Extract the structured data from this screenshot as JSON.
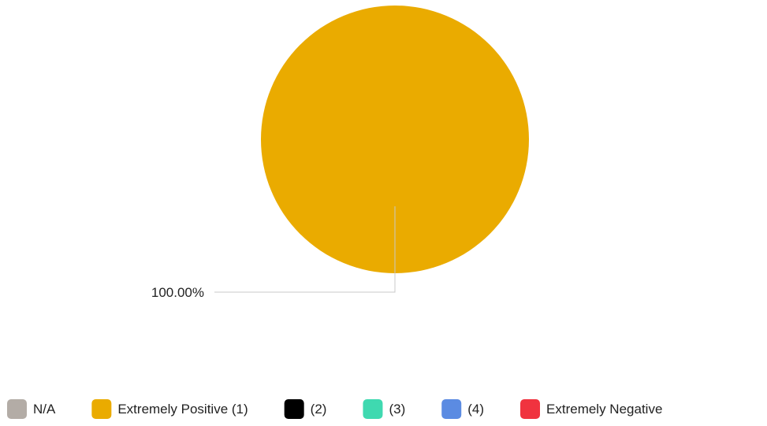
{
  "chart_data": {
    "type": "pie",
    "title": "",
    "slices": [
      {
        "label": "N/A",
        "value": 0,
        "color": "#b3aca6"
      },
      {
        "label": "Extremely Positive (1)",
        "value": 100,
        "color": "#eaab00"
      },
      {
        "label": "(2)",
        "value": 0,
        "color": "#000000"
      },
      {
        "label": "(3)",
        "value": 0,
        "color": "#3fd9b0"
      },
      {
        "label": "(4)",
        "value": 0,
        "color": "#5b8be2"
      },
      {
        "label": "Extremely Negative",
        "value": 0,
        "color": "#f0333f"
      }
    ],
    "data_labels": [
      "100.00%"
    ],
    "leader_line_color": "#c8c8c8",
    "legend_position": "bottom"
  }
}
